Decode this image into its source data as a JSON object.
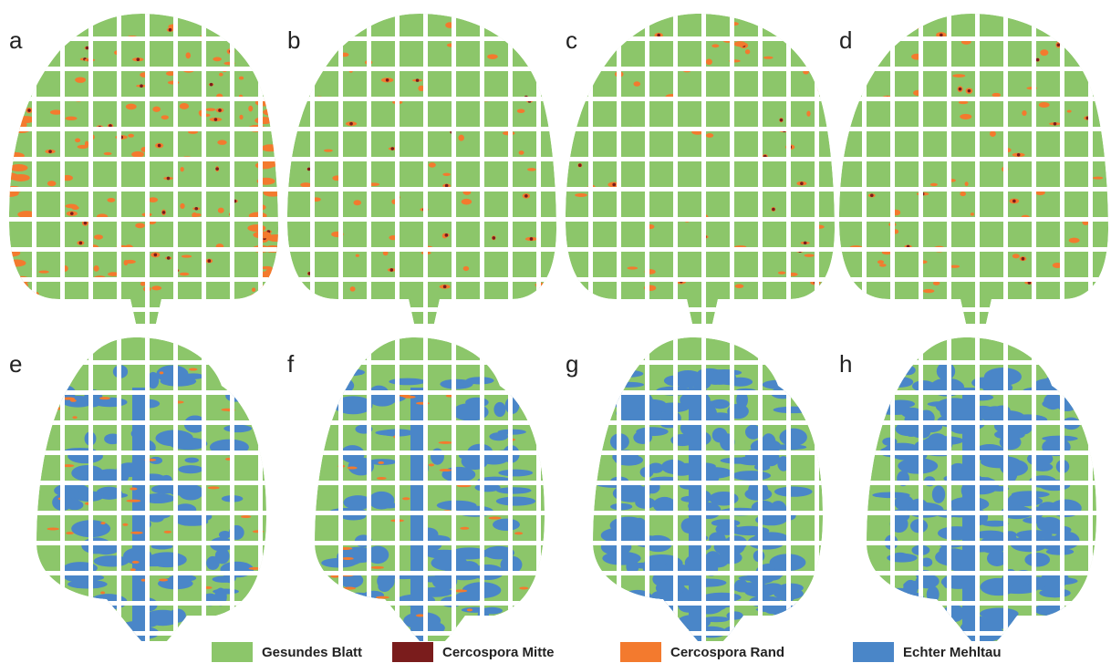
{
  "panels": [
    {
      "label": "a"
    },
    {
      "label": "b"
    },
    {
      "label": "c"
    },
    {
      "label": "d"
    },
    {
      "label": "e"
    },
    {
      "label": "f"
    },
    {
      "label": "g"
    },
    {
      "label": "h"
    }
  ],
  "legend": [
    {
      "name": "Gesundes Blatt",
      "color": "#8cc66a"
    },
    {
      "name": "Cercospora Mitte",
      "color": "#7a1c1c"
    },
    {
      "name": "Cercospora Rand",
      "color": "#f37a2e"
    },
    {
      "name": "Echter Mehltau",
      "color": "#4a86c8"
    }
  ]
}
